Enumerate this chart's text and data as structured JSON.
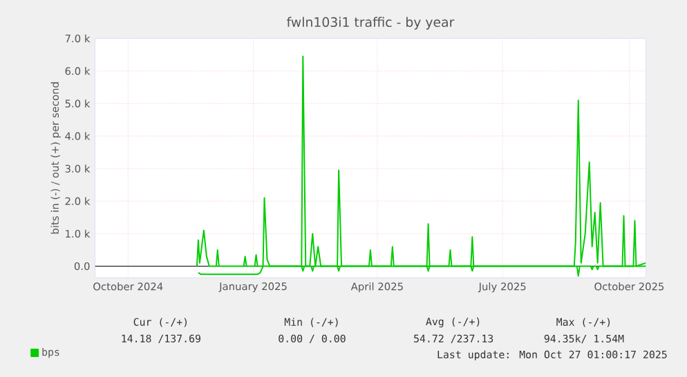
{
  "chart_data": {
    "type": "line",
    "title": "fwln103i1 traffic - by year",
    "ylabel": "bits in (-) / out (+) per second",
    "xlim": [
      "2024-09-22",
      "2025-10-27"
    ],
    "xticks": [
      {
        "value": "2024-10-16",
        "label": "October 2024"
      },
      {
        "value": "2025-01-15",
        "label": "January 2025"
      },
      {
        "value": "2025-04-15",
        "label": "April 2025"
      },
      {
        "value": "2025-07-15",
        "label": "July 2025"
      },
      {
        "value": "2025-10-15",
        "label": "October 2025"
      }
    ],
    "ylim": [
      -350,
      7000
    ],
    "yticks": [
      {
        "value": 0,
        "label": "0.0"
      },
      {
        "value": 1000,
        "label": "1.0 k"
      },
      {
        "value": 2000,
        "label": "2.0 k"
      },
      {
        "value": 3000,
        "label": "3.0 k"
      },
      {
        "value": 4000,
        "label": "4.0 k"
      },
      {
        "value": 5000,
        "label": "5.0 k"
      },
      {
        "value": 6000,
        "label": "6.0 k"
      },
      {
        "value": 7000,
        "label": "7.0 k"
      }
    ],
    "grid": true,
    "legend": "bottom",
    "series": [
      {
        "name": "bps",
        "color": "#00cc00",
        "x": [
          "2024-12-05",
          "2024-12-06",
          "2024-12-07",
          "2024-12-10",
          "2024-12-12",
          "2024-12-14",
          "2024-12-19",
          "2024-12-20",
          "2024-12-21",
          "2025-01-08",
          "2025-01-09",
          "2025-01-10",
          "2025-01-16",
          "2025-01-17",
          "2025-01-18",
          "2025-01-22",
          "2025-01-23",
          "2025-01-25",
          "2025-01-27",
          "2025-02-19",
          "2025-02-20",
          "2025-02-22",
          "2025-02-25",
          "2025-02-27",
          "2025-03-01",
          "2025-03-03",
          "2025-03-05",
          "2025-03-17",
          "2025-03-18",
          "2025-03-20",
          "2025-04-09",
          "2025-04-10",
          "2025-04-11",
          "2025-04-25",
          "2025-04-26",
          "2025-04-27",
          "2025-05-21",
          "2025-05-22",
          "2025-05-23",
          "2025-06-06",
          "2025-06-07",
          "2025-06-08",
          "2025-06-22",
          "2025-06-23",
          "2025-06-24",
          "2025-09-05",
          "2025-09-06",
          "2025-09-08",
          "2025-09-10",
          "2025-09-13",
          "2025-09-16",
          "2025-09-18",
          "2025-09-20",
          "2025-09-22",
          "2025-09-24",
          "2025-09-26",
          "2025-10-10",
          "2025-10-11",
          "2025-10-12",
          "2025-10-18",
          "2025-10-19",
          "2025-10-20",
          "2025-10-27"
        ],
        "values": [
          0,
          800,
          100,
          1100,
          300,
          0,
          0,
          500,
          0,
          0,
          300,
          0,
          0,
          350,
          0,
          0,
          2100,
          200,
          0,
          0,
          6450,
          0,
          0,
          1000,
          0,
          600,
          0,
          0,
          2950,
          0,
          0,
          500,
          0,
          0,
          600,
          0,
          0,
          1300,
          0,
          0,
          500,
          0,
          0,
          900,
          0,
          0,
          750,
          5100,
          100,
          1000,
          3200,
          600,
          1650,
          100,
          1950,
          0,
          0,
          1550,
          0,
          0,
          1400,
          0,
          100
        ]
      },
      {
        "color": "#00cc00",
        "x": [
          "2024-12-06",
          "2024-12-08",
          "2025-01-18",
          "2025-01-20",
          "2025-01-22",
          "2025-02-19",
          "2025-02-20",
          "2025-02-21",
          "2025-02-26",
          "2025-02-27",
          "2025-02-28",
          "2025-03-17",
          "2025-03-18",
          "2025-03-19",
          "2025-05-21",
          "2025-05-22",
          "2025-05-23",
          "2025-06-22",
          "2025-06-23",
          "2025-06-24",
          "2025-09-07",
          "2025-09-08",
          "2025-09-09",
          "2025-09-17",
          "2025-09-18",
          "2025-09-19",
          "2025-09-21",
          "2025-09-22",
          "2025-09-23",
          "2025-10-27"
        ],
        "values": [
          -200,
          -250,
          -250,
          -200,
          0,
          0,
          -150,
          0,
          0,
          -150,
          0,
          0,
          -150,
          0,
          0,
          -150,
          0,
          0,
          -150,
          0,
          0,
          -300,
          0,
          0,
          -100,
          0,
          0,
          -100,
          0,
          0
        ]
      }
    ],
    "annotations": [
      "Cur (-/+)",
      "Min (-/+)",
      "Avg (-/+)",
      "Max (-/+)",
      "14.18 /137.69",
      "0.00 /   0.00",
      "54.72 /237.13",
      "94.35k/  1.54M",
      "Last update: Mon Oct 27 01:00:17 2025"
    ]
  }
}
